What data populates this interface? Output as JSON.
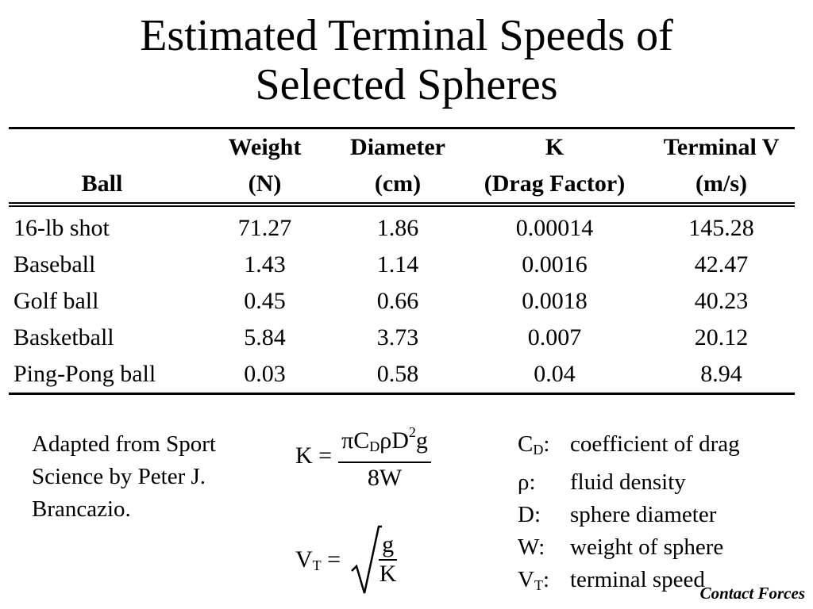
{
  "title": {
    "line1": "Estimated Terminal Speeds of",
    "line2": "Selected Spheres"
  },
  "table": {
    "headers": [
      {
        "line1": "",
        "line2": "Ball"
      },
      {
        "line1": "Weight",
        "line2": "(N)"
      },
      {
        "line1": "Diameter",
        "line2": "(cm)"
      },
      {
        "line1": "K",
        "line2": "(Drag Factor)"
      },
      {
        "line1": "Terminal V",
        "line2": "(m/s)"
      }
    ],
    "rows": [
      {
        "ball": "16-lb shot",
        "weight": "71.27",
        "diameter": "1.86",
        "k": "0.00014",
        "vt": "145.28"
      },
      {
        "ball": "Baseball",
        "weight": "1.43",
        "diameter": "1.14",
        "k": "0.0016",
        "vt": "42.47"
      },
      {
        "ball": "Golf ball",
        "weight": "0.45",
        "diameter": "0.66",
        "k": "0.0018",
        "vt": "40.23"
      },
      {
        "ball": "Basketball",
        "weight": "5.84",
        "diameter": "3.73",
        "k": "0.007",
        "vt": "20.12"
      },
      {
        "ball": "Ping-Pong ball",
        "weight": "0.03",
        "diameter": "0.58",
        "k": "0.04",
        "vt": "8.94"
      }
    ]
  },
  "credit": {
    "line1": "Adapted from Sport",
    "line2": "Science by Peter J.",
    "line3": "Brancazio."
  },
  "formula_k": {
    "lhs": "K =",
    "num_pi": "π",
    "num_c": "C",
    "num_c_sub": "D",
    "num_rho": "ρ",
    "num_d": "D",
    "num_d_sup": "2",
    "num_g": "g",
    "den": "8W"
  },
  "formula_vt": {
    "lhs_v": "V",
    "lhs_sub": "T",
    "lhs_eq": "=",
    "num": "g",
    "den": "K"
  },
  "legend": [
    {
      "sym": "C",
      "sub": "D",
      "colon": ":",
      "desc": "coefficient of drag"
    },
    {
      "sym": "ρ",
      "sub": "",
      "colon": ":",
      "desc": "fluid density"
    },
    {
      "sym": "D",
      "sub": "",
      "colon": ":",
      "desc": "sphere diameter"
    },
    {
      "sym": "W",
      "sub": "",
      "colon": ":",
      "desc": "weight of sphere"
    },
    {
      "sym": "V",
      "sub": "T",
      "colon": ":",
      "desc": "terminal speed"
    }
  ],
  "footer": "Contact Forces"
}
